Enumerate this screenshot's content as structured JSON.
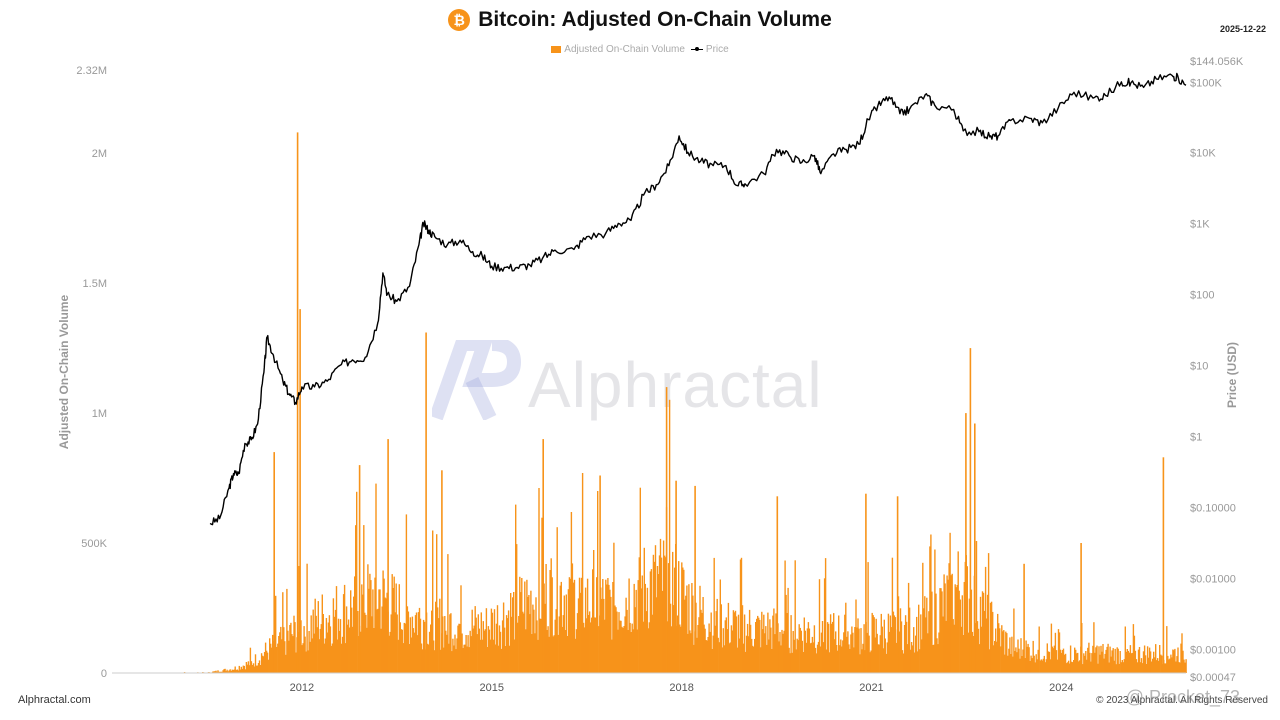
{
  "header": {
    "title": "Bitcoin: Adjusted On-Chain Volume",
    "date": "2025-12-22",
    "icon": "bitcoin-icon"
  },
  "legend": {
    "volume_label": "Adjusted On-Chain Volume",
    "price_label": "Price"
  },
  "watermark": {
    "brand": "Alphractal",
    "user": "@ Procket_73"
  },
  "footer": {
    "left": "Alphractal.com",
    "right": "© 2023 Alphractal. All Rights Reserved"
  },
  "colors": {
    "volume": "#f7931a",
    "price": "#000000",
    "axis_text": "#999999"
  },
  "chart_data": {
    "type": "bar+line",
    "title": "Bitcoin: Adjusted On-Chain Volume",
    "y_left_label": "Adjusted On-Chain Volume",
    "y_right_label": "Price (USD)",
    "x_ticks": [
      "2012",
      "2015",
      "2018",
      "2021",
      "2024"
    ],
    "y_left_ticks": [
      "0",
      "500K",
      "1M",
      "1.5M",
      "2M",
      "2.32M"
    ],
    "y_left_range": [
      0,
      2320000
    ],
    "y_right_ticks": [
      "$0.00047",
      "$0.00100",
      "$0.01000",
      "$0.10000",
      "$1",
      "$10",
      "$100",
      "$1K",
      "$10K",
      "$100K",
      "$144.056K"
    ],
    "y_right_range": [
      0.00047,
      144056
    ],
    "y_right_scale": "log",
    "x_range": [
      2009.0,
      2025.97
    ],
    "series": [
      {
        "name": "Price",
        "type": "line",
        "points": [
          [
            2010.55,
            0.06
          ],
          [
            2010.7,
            0.07
          ],
          [
            2010.85,
            0.19
          ],
          [
            2010.92,
            0.3
          ],
          [
            2011.0,
            0.3
          ],
          [
            2011.1,
            0.8
          ],
          [
            2011.2,
            0.9
          ],
          [
            2011.3,
            1.5
          ],
          [
            2011.4,
            8
          ],
          [
            2011.45,
            25
          ],
          [
            2011.55,
            14
          ],
          [
            2011.7,
            6
          ],
          [
            2011.8,
            4
          ],
          [
            2011.9,
            3
          ],
          [
            2012.0,
            5
          ],
          [
            2012.2,
            5
          ],
          [
            2012.4,
            6
          ],
          [
            2012.6,
            10
          ],
          [
            2012.8,
            12
          ],
          [
            2013.0,
            13
          ],
          [
            2013.2,
            40
          ],
          [
            2013.28,
            200
          ],
          [
            2013.35,
            100
          ],
          [
            2013.5,
            80
          ],
          [
            2013.7,
            130
          ],
          [
            2013.85,
            500
          ],
          [
            2013.92,
            1000
          ],
          [
            2014.0,
            800
          ],
          [
            2014.1,
            650
          ],
          [
            2014.3,
            500
          ],
          [
            2014.5,
            580
          ],
          [
            2014.7,
            400
          ],
          [
            2014.85,
            350
          ],
          [
            2015.0,
            250
          ],
          [
            2015.2,
            240
          ],
          [
            2015.4,
            240
          ],
          [
            2015.6,
            260
          ],
          [
            2015.8,
            320
          ],
          [
            2016.0,
            420
          ],
          [
            2016.3,
            430
          ],
          [
            2016.5,
            650
          ],
          [
            2016.8,
            720
          ],
          [
            2017.0,
            1000
          ],
          [
            2017.2,
            1100
          ],
          [
            2017.4,
            2500
          ],
          [
            2017.6,
            3500
          ],
          [
            2017.8,
            6500
          ],
          [
            2017.96,
            17000
          ],
          [
            2018.1,
            10000
          ],
          [
            2018.3,
            7500
          ],
          [
            2018.5,
            6500
          ],
          [
            2018.7,
            6500
          ],
          [
            2018.88,
            3400
          ],
          [
            2019.0,
            3600
          ],
          [
            2019.3,
            5000
          ],
          [
            2019.5,
            11000
          ],
          [
            2019.7,
            9000
          ],
          [
            2019.9,
            7200
          ],
          [
            2020.1,
            9000
          ],
          [
            2020.2,
            5000
          ],
          [
            2020.4,
            9500
          ],
          [
            2020.6,
            11000
          ],
          [
            2020.8,
            13000
          ],
          [
            2020.95,
            29000
          ],
          [
            2021.1,
            45000
          ],
          [
            2021.28,
            60000
          ],
          [
            2021.45,
            35000
          ],
          [
            2021.6,
            40000
          ],
          [
            2021.85,
            65000
          ],
          [
            2022.0,
            46000
          ],
          [
            2022.3,
            40000
          ],
          [
            2022.45,
            20000
          ],
          [
            2022.7,
            19500
          ],
          [
            2022.87,
            16500
          ],
          [
            2023.0,
            17000
          ],
          [
            2023.2,
            28000
          ],
          [
            2023.5,
            30000
          ],
          [
            2023.7,
            26000
          ],
          [
            2023.95,
            42000
          ],
          [
            2024.2,
            70000
          ],
          [
            2024.5,
            58000
          ],
          [
            2024.7,
            63000
          ],
          [
            2024.95,
            98000
          ],
          [
            2025.1,
            95000
          ],
          [
            2025.3,
            82000
          ],
          [
            2025.5,
            108000
          ],
          [
            2025.75,
            121000
          ],
          [
            2025.85,
            110000
          ],
          [
            2025.97,
            88000
          ]
        ]
      },
      {
        "name": "Adjusted On-Chain Volume",
        "type": "bar",
        "envelope": [
          [
            2009.0,
            0
          ],
          [
            2010.5,
            2000
          ],
          [
            2010.9,
            20000
          ],
          [
            2011.2,
            50000
          ],
          [
            2011.5,
            120000
          ],
          [
            2011.9,
            200000
          ],
          [
            2012.3,
            260000
          ],
          [
            2012.8,
            320000
          ],
          [
            2013.2,
            380000
          ],
          [
            2013.5,
            300000
          ],
          [
            2013.9,
            260000
          ],
          [
            2014.4,
            230000
          ],
          [
            2014.9,
            220000
          ],
          [
            2015.5,
            330000
          ],
          [
            2016.0,
            400000
          ],
          [
            2016.5,
            340000
          ],
          [
            2016.9,
            330000
          ],
          [
            2017.3,
            400000
          ],
          [
            2017.8,
            460000
          ],
          [
            2018.2,
            300000
          ],
          [
            2018.7,
            230000
          ],
          [
            2019.2,
            210000
          ],
          [
            2019.7,
            210000
          ],
          [
            2020.2,
            200000
          ],
          [
            2020.7,
            190000
          ],
          [
            2021.2,
            200000
          ],
          [
            2021.7,
            220000
          ],
          [
            2022.1,
            320000
          ],
          [
            2022.4,
            420000
          ],
          [
            2022.6,
            350000
          ],
          [
            2022.9,
            230000
          ],
          [
            2023.2,
            120000
          ],
          [
            2023.6,
            110000
          ],
          [
            2024.0,
            90000
          ],
          [
            2024.5,
            100000
          ],
          [
            2025.0,
            90000
          ],
          [
            2025.5,
            95000
          ],
          [
            2025.97,
            100000
          ]
        ],
        "spikes": [
          [
            2011.92,
            2080000
          ],
          [
            2011.96,
            1400000
          ],
          [
            2011.55,
            850000
          ],
          [
            2012.9,
            800000
          ],
          [
            2013.35,
            900000
          ],
          [
            2013.95,
            1310000
          ],
          [
            2014.2,
            780000
          ],
          [
            2015.8,
            900000
          ],
          [
            2016.7,
            760000
          ],
          [
            2017.9,
            740000
          ],
          [
            2018.2,
            720000
          ],
          [
            2017.75,
            1100000
          ],
          [
            2019.5,
            680000
          ],
          [
            2020.9,
            690000
          ],
          [
            2021.4,
            680000
          ],
          [
            2022.55,
            1250000
          ],
          [
            2022.48,
            1000000
          ],
          [
            2022.62,
            960000
          ],
          [
            2024.3,
            500000
          ],
          [
            2025.6,
            830000
          ],
          [
            2023.4,
            420000
          ]
        ]
      }
    ]
  }
}
